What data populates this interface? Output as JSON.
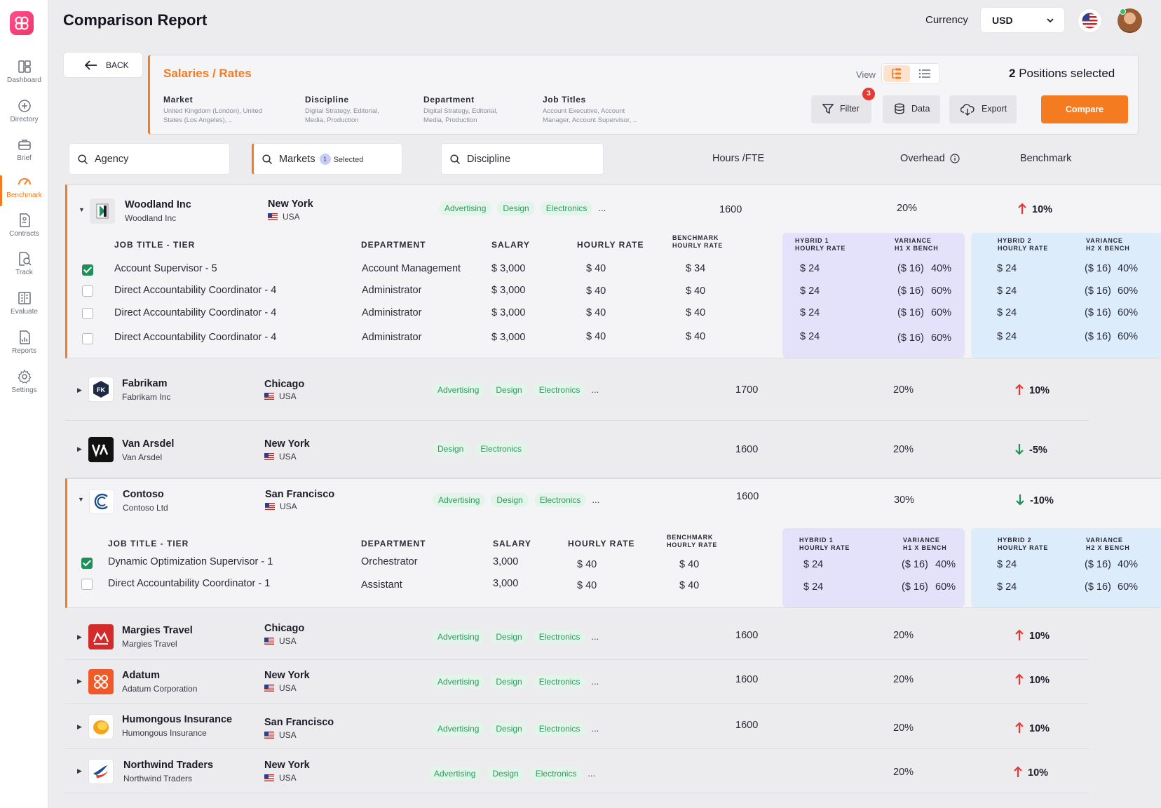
{
  "sidebar": {
    "items": [
      {
        "label": "Dashboard",
        "icon": "dashboard-icon"
      },
      {
        "label": "Directory",
        "icon": "directory-icon"
      },
      {
        "label": "Brief",
        "icon": "briefcase-icon"
      },
      {
        "label": "Benchmark",
        "icon": "gauge-icon",
        "active": true
      },
      {
        "label": "Contracts",
        "icon": "contract-icon"
      },
      {
        "label": "Track",
        "icon": "track-icon"
      },
      {
        "label": "Evaluate",
        "icon": "evaluate-icon"
      },
      {
        "label": "Reports",
        "icon": "reports-icon"
      },
      {
        "label": "Settings",
        "icon": "gear-icon"
      }
    ]
  },
  "header": {
    "title": "Comparison Report",
    "currency_label": "Currency",
    "currency_value": "USD"
  },
  "toolbar": {
    "back_label": "BACK",
    "summary_title": "Salaries / Rates",
    "market_label": "Market",
    "market_value": "United Kingdom (London),  United States (Los Angeles), ..",
    "discipline_label": "Discipline",
    "discipline_value": "Digital Strategy, Editorial, Media, Production",
    "department_label": "Department",
    "department_value": "Digital Strategy, Editorial, Media, Production",
    "jobtitles_label": "Job Titles",
    "jobtitles_value": "Account Executive, Account Manager, Account Supervisor, ..",
    "view_label": "View",
    "positions_count": "2",
    "positions_text": "Positions selected",
    "filter_label": "Filter",
    "filter_badge": "3",
    "data_label": "Data",
    "export_label": "Export",
    "compare_label": "Compare"
  },
  "filters": {
    "agency_placeholder": "Agency",
    "markets_label": "Markets",
    "markets_count": "1",
    "markets_selected": "Selected",
    "discipline_placeholder": "Discipline",
    "hours_header": "Hours /FTE",
    "overhead_header": "Overhead",
    "benchmark_header": "Benchmark"
  },
  "detail_headers": {
    "job_title": "JOB TITLE - TIER",
    "department": "DEPARTMENT",
    "salary": "SALARY",
    "hourly_rate": "HOURLY RATE",
    "benchmark_1": "BENCHMARK",
    "benchmark_2": "HOURLY RATE",
    "hybrid1_1": "HYBRID 1",
    "hybrid1_2": "HOURLY RATE",
    "var1_1": "VARIANCE",
    "var1_2": "H1 X BENCH",
    "hybrid2_1": "HYBRID 2",
    "hybrid2_2": "HOURLY RATE",
    "var2_1": "VARIANCE",
    "var2_2": "H2 X BENCH"
  },
  "agencies": [
    {
      "name": "Woodland Inc",
      "sub": "Woodland Inc",
      "city": "New York",
      "country": "USA",
      "tags": [
        "Advertising",
        "Design",
        "Electronics"
      ],
      "more": "...",
      "hours": "1600",
      "overhead": "20%",
      "trend": "up",
      "bench": "10%",
      "positions": [
        {
          "checked": true,
          "title": "Account Supervisor - 5",
          "department": "Account Management",
          "salary": "$ 3,000",
          "hourly": "$ 40",
          "bench": "$ 34",
          "h1": "$ 24",
          "v1": "($ 16)",
          "v1p": "40%",
          "h2": "$ 24",
          "v2": "($ 16)",
          "v2p": "40%"
        },
        {
          "checked": false,
          "title": "Direct Accountability Coordinator - 4",
          "department": "Administrator",
          "salary": "$ 3,000",
          "hourly": "$ 40",
          "bench": "$ 40",
          "h1": "$ 24",
          "v1": "($ 16)",
          "v1p": "60%",
          "h2": "$ 24",
          "v2": "($ 16)",
          "v2p": "60%"
        },
        {
          "checked": false,
          "title": "Direct Accountability Coordinator - 4",
          "department": "Administrator",
          "salary": "$ 3,000",
          "hourly": "$ 40",
          "bench": "$ 40",
          "h1": "$ 24",
          "v1": "($ 16)",
          "v1p": "60%",
          "h2": "$ 24",
          "v2": "($ 16)",
          "v2p": "60%"
        },
        {
          "checked": false,
          "title": "Direct Accountability Coordinator - 4",
          "department": "Administrator",
          "salary": "$ 3,000",
          "hourly": "$ 40",
          "bench": "$ 40",
          "h1": "$ 24",
          "v1": "($ 16)",
          "v1p": "60%",
          "h2": "$ 24",
          "v2": "($ 16)",
          "v2p": "60%"
        }
      ]
    },
    {
      "name": "Fabrikam",
      "sub": "Fabrikam Inc",
      "city": "Chicago",
      "country": "USA",
      "tags": [
        "Advertising",
        "Design",
        "Electronics"
      ],
      "more": "...",
      "hours": "1700",
      "overhead": "20%",
      "trend": "up",
      "bench": "10%"
    },
    {
      "name": "Van Arsdel",
      "sub": "Van Arsdel",
      "city": "New York",
      "country": "USA",
      "tags": [
        "Design",
        "Electronics"
      ],
      "more": "",
      "hours": "1600",
      "overhead": "20%",
      "trend": "down",
      "bench": "-5%"
    },
    {
      "name": "Contoso",
      "sub": "Contoso Ltd",
      "city": "San Francisco",
      "country": "USA",
      "tags": [
        "Advertising",
        "Design",
        "Electronics"
      ],
      "more": "...",
      "hours": "1600",
      "overhead": "30%",
      "trend": "down",
      "bench": "-10%",
      "positions": [
        {
          "checked": true,
          "title": "Dynamic Optimization Supervisor - 1",
          "department": "Orchestrator",
          "salary": "3,000",
          "hourly": "$ 40",
          "bench": "$ 40",
          "h1": "$ 24",
          "v1": "($ 16)",
          "v1p": "40%",
          "h2": "$ 24",
          "v2": "($ 16)",
          "v2p": "40%"
        },
        {
          "checked": false,
          "title": "Direct Accountability Coordinator - 1",
          "department": "Assistant",
          "salary": "3,000",
          "hourly": "$ 40",
          "bench": "$ 40",
          "h1": "$ 24",
          "v1": "($ 16)",
          "v1p": "60%",
          "h2": "$ 24",
          "v2": "($ 16)",
          "v2p": "60%"
        }
      ]
    },
    {
      "name": "Margies Travel",
      "sub": "Margies Travel",
      "city": "Chicago",
      "country": "USA",
      "tags": [
        "Advertising",
        "Design",
        "Electronics"
      ],
      "more": "...",
      "hours": "1600",
      "overhead": "20%",
      "trend": "up",
      "bench": "10%"
    },
    {
      "name": "Adatum",
      "sub": "Adatum Corporation",
      "city": "New York",
      "country": "USA",
      "tags": [
        "Advertising",
        "Design",
        "Electronics"
      ],
      "more": "...",
      "hours": "1600",
      "overhead": "20%",
      "trend": "up",
      "bench": "10%"
    },
    {
      "name": "Humongous Insurance",
      "sub": "Humongous Insurance",
      "city": "San Francisco",
      "country": "USA",
      "tags": [
        "Advertising",
        "Design",
        "Electronics"
      ],
      "more": "...",
      "hours": "1600",
      "overhead": "20%",
      "trend": "up",
      "bench": "10%"
    },
    {
      "name": "Northwind Traders",
      "sub": "Northwind Traders",
      "city": "New York",
      "country": "USA",
      "tags": [
        "Advertising",
        "Design",
        "Electronics"
      ],
      "more": "...",
      "hours": "",
      "overhead": "20%",
      "trend": "up",
      "bench": "10%"
    }
  ],
  "colors": {
    "accent": "#f47b20",
    "up": "#e53935",
    "down": "#1f8f5a",
    "tag_bg": "#e3f4ea",
    "tag_fg": "#2e9b5e"
  }
}
